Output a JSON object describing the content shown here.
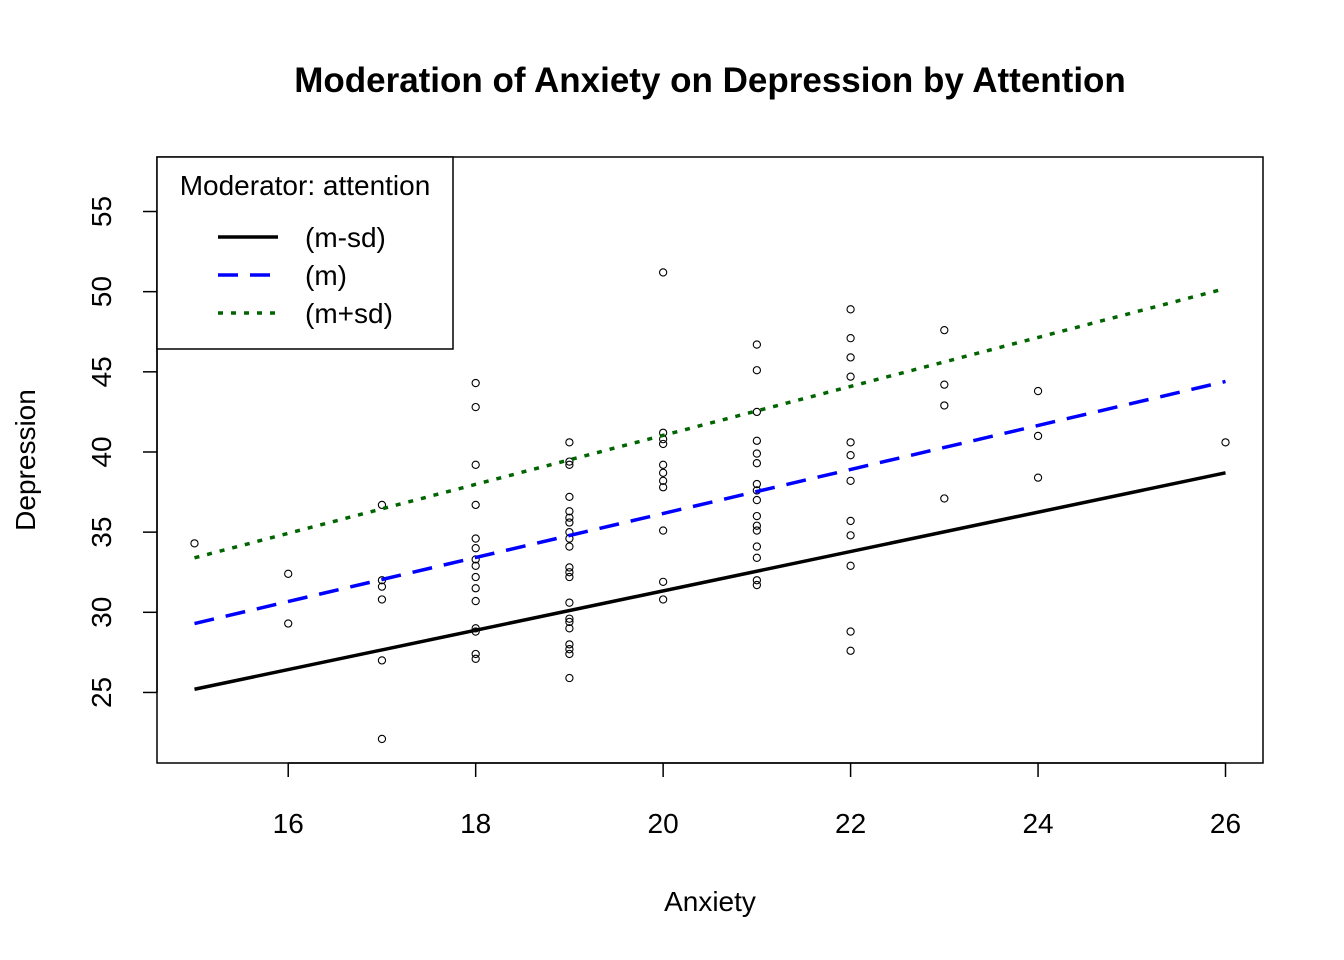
{
  "chart_data": {
    "type": "scatter",
    "title": "Moderation of Anxiety on Depression by Attention",
    "xlabel": "Anxiety",
    "ylabel": "Depression",
    "xlim": [
      14.6,
      26.4
    ],
    "ylim": [
      20.6,
      58.4
    ],
    "xticks": [
      16,
      18,
      20,
      22,
      24,
      26
    ],
    "yticks": [
      25,
      30,
      35,
      40,
      45,
      50,
      55
    ],
    "legend": {
      "title": "Moderator: attention",
      "position": "top-left"
    },
    "series": [
      {
        "name": "(m-sd)",
        "style": "solid",
        "color": "#000000",
        "x": [
          15,
          26
        ],
        "y": [
          25.2,
          38.7
        ]
      },
      {
        "name": "(m)",
        "style": "dashed",
        "color": "#0000ff",
        "x": [
          15,
          26
        ],
        "y": [
          29.3,
          44.4
        ]
      },
      {
        "name": "(m+sd)",
        "style": "dotted",
        "color": "#006400",
        "x": [
          15,
          26
        ],
        "y": [
          33.4,
          50.2
        ]
      }
    ],
    "points": [
      [
        15,
        34.3
      ],
      [
        16,
        32.4
      ],
      [
        16,
        29.3
      ],
      [
        17,
        36.7
      ],
      [
        17,
        32.0
      ],
      [
        17,
        31.6
      ],
      [
        17,
        30.8
      ],
      [
        17,
        27.0
      ],
      [
        17,
        22.1
      ],
      [
        18,
        44.3
      ],
      [
        18,
        42.8
      ],
      [
        18,
        39.2
      ],
      [
        18,
        36.7
      ],
      [
        18,
        34.6
      ],
      [
        18,
        34.0
      ],
      [
        18,
        33.3
      ],
      [
        18,
        32.9
      ],
      [
        18,
        32.2
      ],
      [
        18,
        31.5
      ],
      [
        18,
        30.7
      ],
      [
        18,
        29.0
      ],
      [
        18,
        28.8
      ],
      [
        18,
        27.4
      ],
      [
        18,
        27.1
      ],
      [
        19,
        40.6
      ],
      [
        19,
        39.4
      ],
      [
        19,
        39.2
      ],
      [
        19,
        37.2
      ],
      [
        19,
        36.3
      ],
      [
        19,
        35.9
      ],
      [
        19,
        35.6
      ],
      [
        19,
        35.0
      ],
      [
        19,
        34.6
      ],
      [
        19,
        34.1
      ],
      [
        19,
        32.8
      ],
      [
        19,
        32.5
      ],
      [
        19,
        32.2
      ],
      [
        19,
        30.6
      ],
      [
        19,
        29.6
      ],
      [
        19,
        29.4
      ],
      [
        19,
        29.0
      ],
      [
        19,
        28.0
      ],
      [
        19,
        27.7
      ],
      [
        19,
        27.4
      ],
      [
        19,
        25.9
      ],
      [
        20,
        51.2
      ],
      [
        20,
        41.2
      ],
      [
        20,
        40.8
      ],
      [
        20,
        40.5
      ],
      [
        20,
        39.2
      ],
      [
        20,
        38.7
      ],
      [
        20,
        38.2
      ],
      [
        20,
        37.8
      ],
      [
        20,
        35.1
      ],
      [
        20,
        31.9
      ],
      [
        20,
        30.8
      ],
      [
        21,
        46.7
      ],
      [
        21,
        45.1
      ],
      [
        21,
        42.5
      ],
      [
        21,
        40.7
      ],
      [
        21,
        39.9
      ],
      [
        21,
        39.3
      ],
      [
        21,
        38.0
      ],
      [
        21,
        37.6
      ],
      [
        21,
        37.0
      ],
      [
        21,
        36.0
      ],
      [
        21,
        35.4
      ],
      [
        21,
        35.1
      ],
      [
        21,
        34.1
      ],
      [
        21,
        33.4
      ],
      [
        21,
        32.0
      ],
      [
        21,
        31.7
      ],
      [
        22,
        48.9
      ],
      [
        22,
        47.1
      ],
      [
        22,
        45.9
      ],
      [
        22,
        44.7
      ],
      [
        22,
        40.6
      ],
      [
        22,
        39.8
      ],
      [
        22,
        38.2
      ],
      [
        22,
        35.7
      ],
      [
        22,
        34.8
      ],
      [
        22,
        32.9
      ],
      [
        22,
        28.8
      ],
      [
        22,
        27.6
      ],
      [
        23,
        47.6
      ],
      [
        23,
        44.2
      ],
      [
        23,
        42.9
      ],
      [
        23,
        37.1
      ],
      [
        24,
        43.8
      ],
      [
        24,
        41.0
      ],
      [
        24,
        38.4
      ],
      [
        26,
        40.6
      ]
    ]
  }
}
